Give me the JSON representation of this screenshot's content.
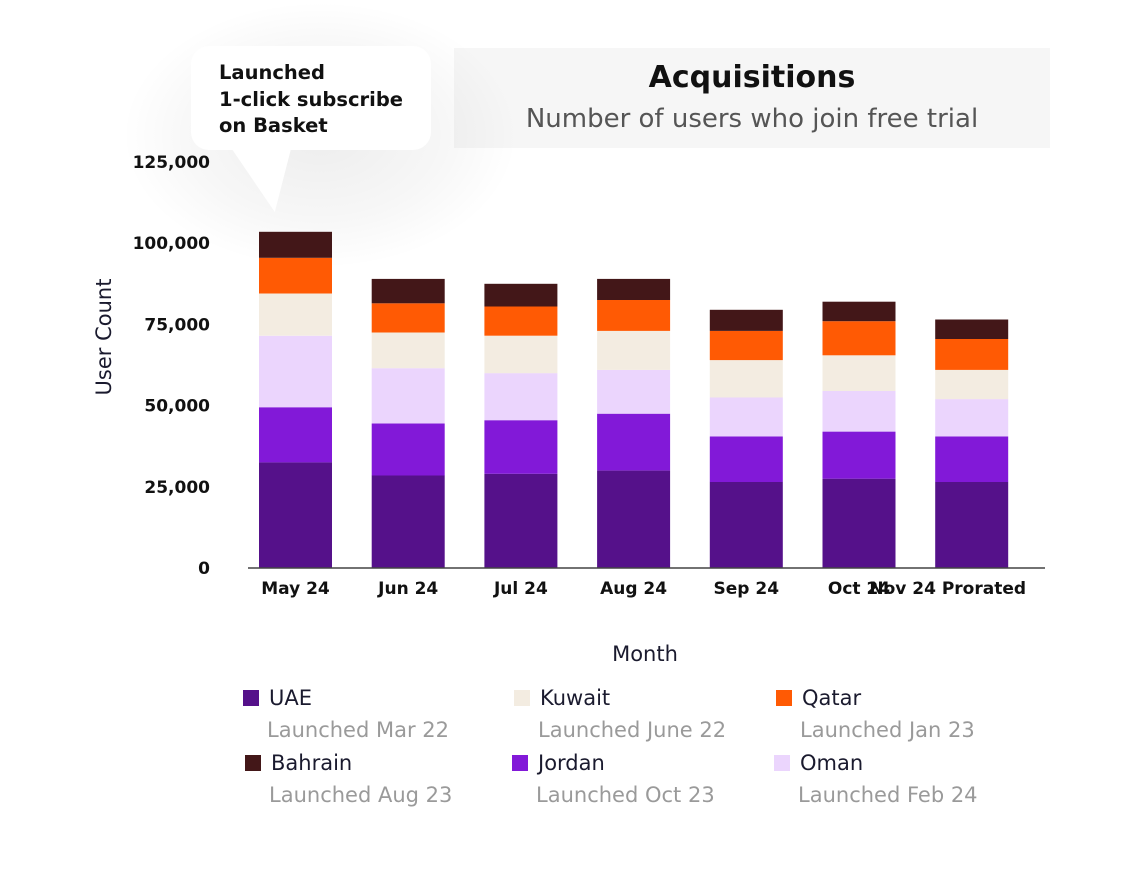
{
  "chart_data": {
    "type": "bar",
    "stacked": true,
    "title": "Acquisitions",
    "subtitle": "Number of users who join free trial",
    "xlabel": "Month",
    "ylabel": "User Count",
    "ylim": [
      0,
      125000
    ],
    "yticks": [
      "0",
      "25,000",
      "50,000",
      "75,000",
      "100,000",
      "125,000"
    ],
    "ytick_values": [
      0,
      25000,
      50000,
      75000,
      100000,
      125000
    ],
    "categories": [
      "May 24",
      "Jun 24",
      "Jul 24",
      "Aug 24",
      "Sep 24",
      "Oct 24",
      "Nov 24 Prorated"
    ],
    "series": [
      {
        "name": "UAE",
        "color": "#55118a",
        "values": [
          32500,
          28500,
          29000,
          30000,
          26500,
          27500,
          26500
        ]
      },
      {
        "name": "Jordan",
        "color": "#8219d8",
        "values": [
          17000,
          16000,
          16500,
          17500,
          14000,
          14500,
          14000
        ]
      },
      {
        "name": "Oman",
        "color": "#ebd5fd",
        "values": [
          22000,
          17000,
          14500,
          13500,
          12000,
          12500,
          11500
        ]
      },
      {
        "name": "Kuwait",
        "color": "#f3ece1",
        "values": [
          13000,
          11000,
          11500,
          12000,
          11500,
          11000,
          9000
        ]
      },
      {
        "name": "Qatar",
        "color": "#ff5a04",
        "values": [
          11000,
          9000,
          9000,
          9500,
          9000,
          10500,
          9500
        ]
      },
      {
        "name": "Bahrain",
        "color": "#431718",
        "values": [
          8000,
          7500,
          7000,
          6500,
          6500,
          6000,
          6000
        ]
      }
    ],
    "legend_position": "bottom",
    "grid": false,
    "annotation": {
      "lines": [
        "Launched",
        "1-click subscribe",
        "on Basket"
      ],
      "category": "May 24"
    }
  },
  "legend": [
    {
      "name": "UAE",
      "sub": "Launched Mar 22",
      "color": "#55118a"
    },
    {
      "name": "Kuwait",
      "sub": "Launched June 22",
      "color": "#f3ece1"
    },
    {
      "name": "Qatar",
      "sub": "Launched Jan 23",
      "color": "#ff5a04"
    },
    {
      "name": "Bahrain",
      "sub": "Launched Aug 23",
      "color": "#431718"
    },
    {
      "name": "Jordan",
      "sub": "Launched Oct 23",
      "color": "#8219d8"
    },
    {
      "name": "Oman",
      "sub": "Launched Feb 24",
      "color": "#ebd5fd"
    }
  ]
}
